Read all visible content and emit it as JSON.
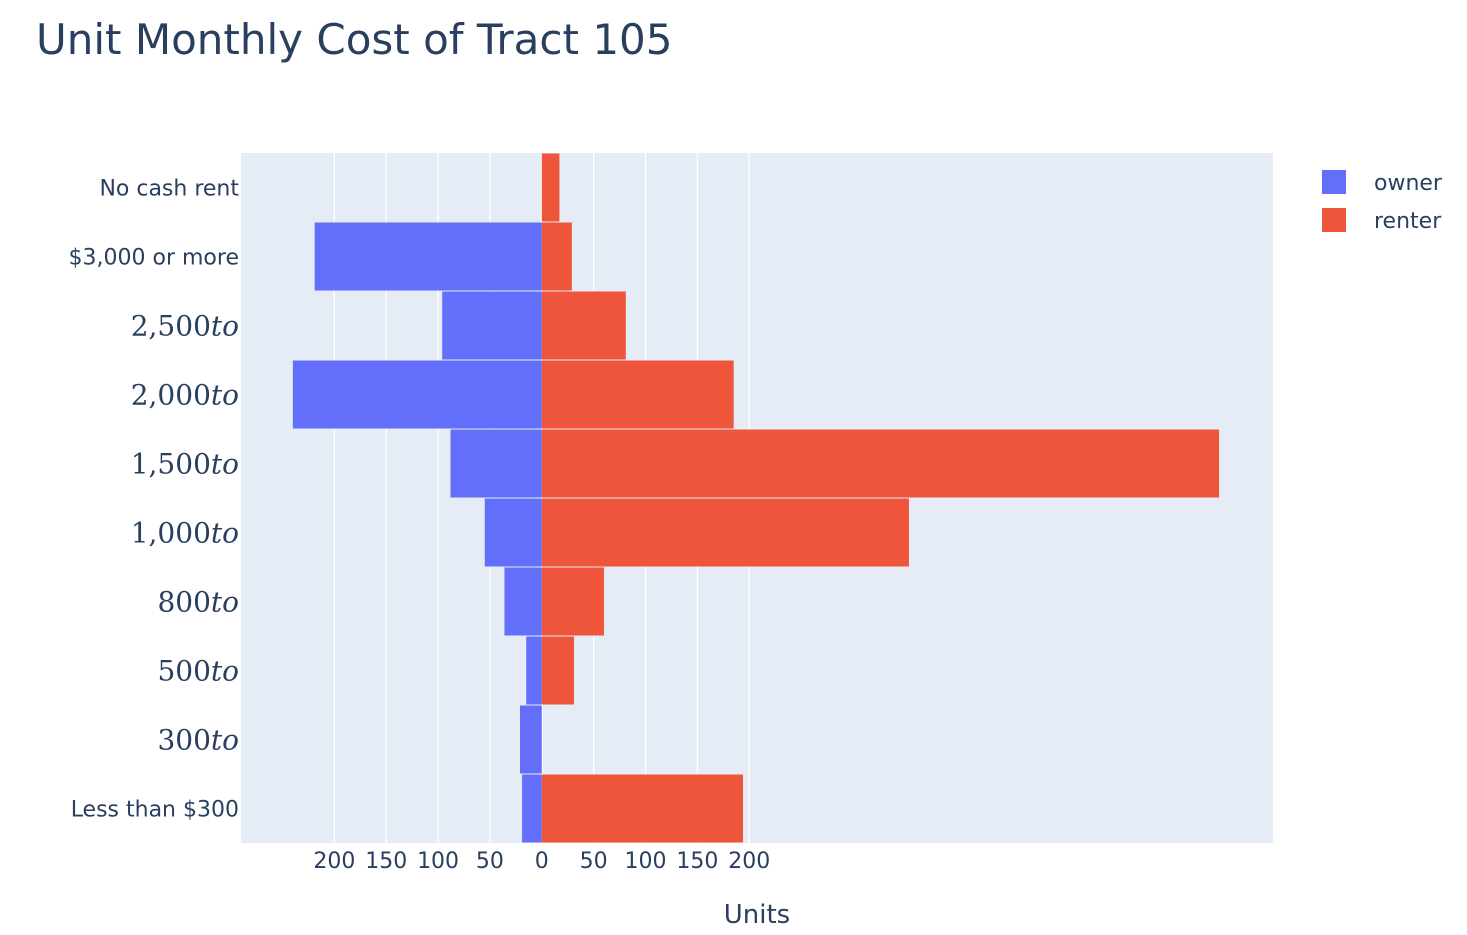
{
  "chart_data": {
    "type": "bar",
    "orientation": "horizontal",
    "title": "Unit Monthly Cost of Tract 105",
    "xlabel": "Units",
    "ylabel": "",
    "xlim": [
      -290,
      705
    ],
    "x_ticks": [
      {
        "value": -200,
        "label": "200"
      },
      {
        "value": -150,
        "label": "150"
      },
      {
        "value": -100,
        "label": "100"
      },
      {
        "value": -50,
        "label": "50"
      },
      {
        "value": 0,
        "label": "0"
      },
      {
        "value": 50,
        "label": "50"
      },
      {
        "value": 100,
        "label": "100"
      },
      {
        "value": 150,
        "label": "150"
      },
      {
        "value": 200,
        "label": "200"
      }
    ],
    "categories": [
      "Less than $300",
      "300to",
      "500to",
      "800to",
      "1,000to",
      "1,500to",
      "2,000to",
      "2,500to",
      "$3,000 or more",
      "No cash rent"
    ],
    "category_math": [
      false,
      true,
      true,
      true,
      true,
      true,
      true,
      true,
      false,
      false
    ],
    "series": [
      {
        "name": "owner",
        "color": "#636efa",
        "values": [
          -19,
          -21,
          -15,
          -36,
          -55,
          -88,
          -240,
          -96,
          -219,
          0
        ]
      },
      {
        "name": "renter",
        "color": "#ef553b",
        "values": [
          194,
          0,
          31,
          60,
          354,
          653,
          185,
          81,
          29,
          17
        ]
      }
    ],
    "grid": true,
    "legend_position": "top-right"
  }
}
